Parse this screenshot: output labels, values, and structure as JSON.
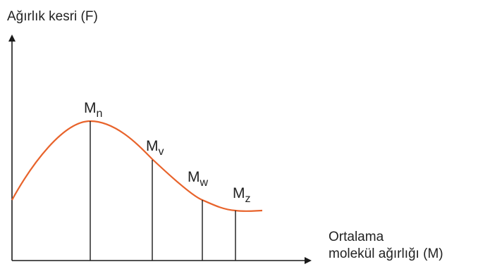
{
  "chart_data": {
    "type": "line",
    "ylabel": "Ağırlık kesri (F)",
    "xlabel_lines": [
      "Ortalama",
      "molekül ağırlığı (M)"
    ],
    "series_color": "#e8632b",
    "axis_color": "#1a1a1a",
    "markers": [
      {
        "base": "M",
        "sub": "n",
        "position": "peak"
      },
      {
        "base": "M",
        "sub": "v",
        "position": "after-peak"
      },
      {
        "base": "M",
        "sub": "w",
        "position": "descending"
      },
      {
        "base": "M",
        "sub": "z",
        "position": "near-tail"
      }
    ]
  }
}
